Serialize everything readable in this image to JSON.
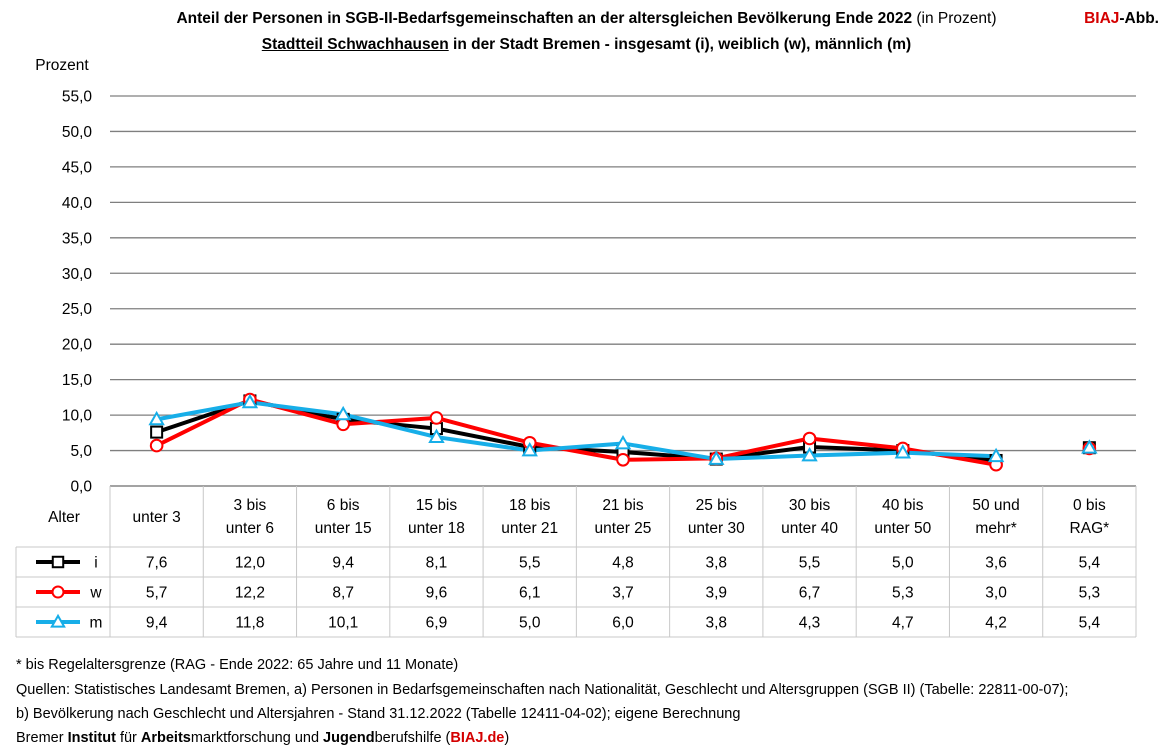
{
  "header": {
    "title_bold": "Anteil der Personen in SGB-II-Bedarfsgemeinschaften an der altersgleichen Bevölkerung Ende 2022",
    "title_suffix": "(in Prozent)",
    "subtitle_underlined": "Stadtteil Schwachhausen",
    "subtitle_rest": "in der Stadt Bremen - insgesamt (i), weiblich (w), männlich (m)",
    "badge_red": "BIAJ",
    "badge_rest": "-Abb."
  },
  "chart_data": {
    "type": "line",
    "ylabel": "Prozent",
    "xlabel": "Alter",
    "ylim": [
      0,
      55
    ],
    "yticks": [
      "0,0",
      "5,0",
      "10,0",
      "15,0",
      "20,0",
      "25,0",
      "30,0",
      "35,0",
      "40,0",
      "45,0",
      "50,0",
      "55,0"
    ],
    "categories": [
      [
        "unter 3"
      ],
      [
        "3 bis",
        "unter 6"
      ],
      [
        "6 bis",
        "unter 15"
      ],
      [
        "15 bis",
        "unter 18"
      ],
      [
        "18 bis",
        "unter 21"
      ],
      [
        "21 bis",
        "unter 25"
      ],
      [
        "25 bis",
        "unter 30"
      ],
      [
        "30 bis",
        "unter 40"
      ],
      [
        "40 bis",
        "unter 50"
      ],
      [
        "50 und",
        "mehr*"
      ],
      [
        "0 bis",
        "RAG*"
      ]
    ],
    "series": [
      {
        "name": "i",
        "color": "#000000",
        "marker": "square",
        "values": [
          7.6,
          12.0,
          9.4,
          8.1,
          5.5,
          4.8,
          3.8,
          5.5,
          5.0,
          3.6,
          5.4
        ],
        "labels": [
          "7,6",
          "12,0",
          "9,4",
          "8,1",
          "5,5",
          "4,8",
          "3,8",
          "5,5",
          "5,0",
          "3,6",
          "5,4"
        ]
      },
      {
        "name": "w",
        "color": "#ff0000",
        "marker": "circle",
        "values": [
          5.7,
          12.2,
          8.7,
          9.6,
          6.1,
          3.7,
          3.9,
          6.7,
          5.3,
          3.0,
          5.3
        ],
        "labels": [
          "5,7",
          "12,2",
          "8,7",
          "9,6",
          "6,1",
          "3,7",
          "3,9",
          "6,7",
          "5,3",
          "3,0",
          "5,3"
        ]
      },
      {
        "name": "m",
        "color": "#17aee8",
        "marker": "triangle",
        "values": [
          9.4,
          11.8,
          10.1,
          6.9,
          5.0,
          6.0,
          3.8,
          4.3,
          4.7,
          4.2,
          5.4
        ],
        "labels": [
          "9,4",
          "11,8",
          "10,1",
          "6,9",
          "5,0",
          "6,0",
          "3,8",
          "4,3",
          "4,7",
          "4,2",
          "5,4"
        ]
      }
    ]
  },
  "footer": {
    "note": "* bis Regelaltersgrenze (RAG - Ende 2022: 65 Jahre und 11 Monate)",
    "sources_1": "Quellen: Statistisches Landesamt Bremen, a) Personen in Bedarfsgemeinschaften nach Nationalität, Geschlecht und Altersgruppen (SGB II) (Tabelle: 22811-00-07);",
    "sources_2": "b) Bevölkerung nach Geschlecht und Altersjahren - Stand 31.12.2022 (Tabelle 12411-04-02); eigene Berechnung",
    "institute": {
      "w1": "Bremer",
      "w2": "Institut",
      "w3": "für",
      "w4": "Arbeits",
      "w5": "marktforschung und",
      "w6": "Jugend",
      "w7": "berufshilfe (",
      "w8": "BIAJ.de",
      "w9": ")"
    }
  }
}
